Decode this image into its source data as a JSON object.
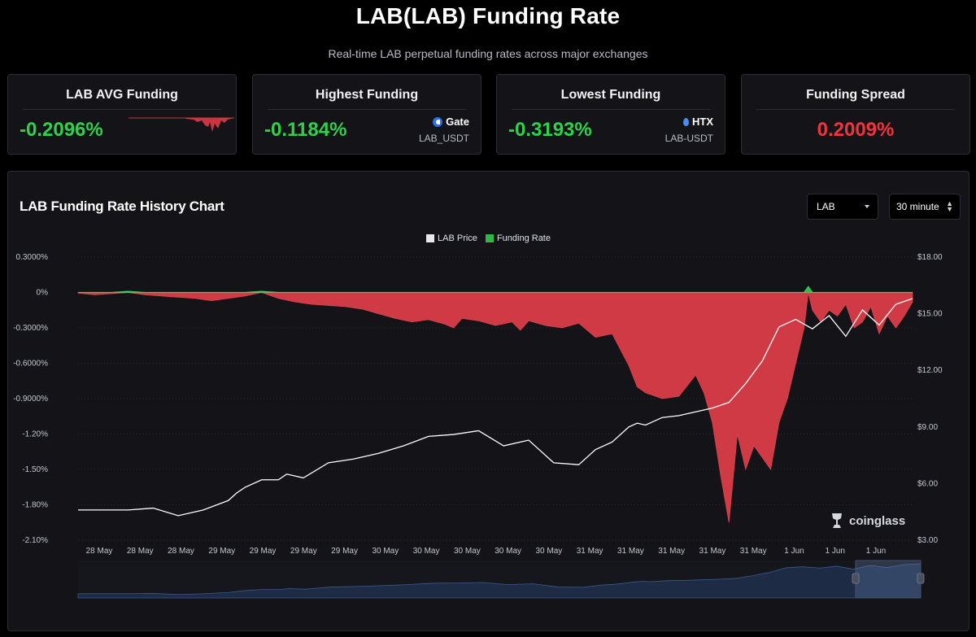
{
  "header": {
    "title": "LAB(LAB) Funding Rate",
    "subtitle": "Real-time LAB perpetual funding rates across major exchanges"
  },
  "cards": {
    "avg": {
      "title": "LAB AVG Funding",
      "value": "-0.2096%"
    },
    "highest": {
      "title": "Highest Funding",
      "value": "-0.1184%",
      "exchange": "Gate",
      "pair": "LAB_USDT"
    },
    "lowest": {
      "title": "Lowest Funding",
      "value": "-0.3193%",
      "exchange": "HTX",
      "pair": "LAB-USDT"
    },
    "spread": {
      "title": "Funding Spread",
      "value": "0.2009%"
    }
  },
  "colors": {
    "positive": "#2fd14a",
    "negative": "#f0333d",
    "funding_area": "#d03a45",
    "price_line": "#ffffff",
    "panel_bg": "#131318"
  },
  "chart_panel": {
    "title": "LAB Funding Rate History Chart",
    "coin_select": "LAB",
    "interval_select": "30 minute",
    "watermark": "coinglass"
  },
  "chart_data": {
    "type": "area",
    "title": "LAB Funding Rate History Chart",
    "legend": [
      "LAB Price",
      "Funding Rate"
    ],
    "legend_placement": "top-center",
    "x_tick_labels": [
      "28 May",
      "28 May",
      "28 May",
      "29 May",
      "29 May",
      "29 May",
      "29 May",
      "30 May",
      "30 May",
      "30 May",
      "30 May",
      "30 May",
      "31 May",
      "31 May",
      "31 May",
      "31 May",
      "31 May",
      "1 Jun",
      "1 Jun",
      "1 Jun"
    ],
    "y_left": {
      "label": "",
      "ticks": [
        "0.3000%",
        "0%",
        "-0.3000%",
        "-0.6000%",
        "-0.9000%",
        "-1.20%",
        "-1.50%",
        "-1.80%",
        "-2.10%"
      ],
      "range": [
        -2.1,
        0.3
      ]
    },
    "y_right": {
      "label": "",
      "ticks": [
        "$18.00",
        "$15.00",
        "$12.00",
        "$9.00",
        "$6.00",
        "$3.00"
      ],
      "range": [
        3,
        18
      ]
    },
    "grid": true,
    "series": [
      {
        "name": "Funding Rate",
        "axis": "left",
        "x": [
          0,
          2,
          4,
          6,
          8,
          10,
          12,
          14,
          16,
          18,
          20,
          22,
          24,
          26,
          28,
          30,
          32,
          34,
          36,
          38,
          40,
          42,
          44,
          45,
          46,
          48,
          50,
          52,
          53,
          54,
          56,
          58,
          60,
          62,
          64,
          66,
          67,
          68,
          70,
          72,
          74,
          75,
          76,
          77,
          78,
          79,
          80,
          81,
          82,
          83,
          84,
          85,
          86,
          87,
          87.5,
          88,
          89,
          90,
          91,
          92,
          93,
          94,
          95,
          96,
          97,
          98,
          99,
          100
        ],
        "values": [
          -0.005,
          -0.02,
          -0.01,
          0.01,
          -0.02,
          -0.03,
          -0.04,
          -0.05,
          -0.07,
          -0.05,
          -0.03,
          0.01,
          -0.05,
          -0.08,
          -0.1,
          -0.11,
          -0.12,
          -0.14,
          -0.18,
          -0.22,
          -0.25,
          -0.23,
          -0.27,
          -0.3,
          -0.22,
          -0.24,
          -0.28,
          -0.25,
          -0.32,
          -0.24,
          -0.28,
          -0.3,
          -0.26,
          -0.38,
          -0.35,
          -0.62,
          -0.8,
          -0.85,
          -0.9,
          -0.88,
          -0.7,
          -0.85,
          -1.1,
          -1.55,
          -1.95,
          -1.2,
          -1.5,
          -1.3,
          -1.4,
          -1.5,
          -1.1,
          -0.9,
          -0.6,
          -0.3,
          0.05,
          -0.15,
          -0.25,
          -0.15,
          -0.2,
          -0.1,
          -0.3,
          -0.25,
          -0.12,
          -0.35,
          -0.2,
          -0.3,
          -0.2,
          -0.08
        ]
      },
      {
        "name": "LAB Price",
        "axis": "right",
        "x": [
          0,
          3,
          6,
          9,
          12,
          15,
          18,
          19,
          20,
          22,
          24,
          25,
          27,
          30,
          33,
          36,
          39,
          42,
          45,
          48,
          51,
          54,
          57,
          60,
          62,
          64,
          66,
          67,
          68,
          70,
          72,
          74,
          76,
          78,
          80,
          82,
          84,
          86,
          88,
          90,
          92,
          94,
          96,
          98,
          100
        ],
        "values": [
          4.6,
          4.6,
          4.6,
          4.7,
          4.3,
          4.6,
          5.1,
          5.5,
          5.8,
          6.2,
          6.2,
          6.5,
          6.3,
          7.1,
          7.3,
          7.6,
          8.0,
          8.5,
          8.6,
          8.8,
          8.0,
          8.3,
          7.1,
          7.0,
          7.8,
          8.2,
          9.0,
          9.2,
          9.1,
          9.5,
          9.6,
          9.8,
          10.0,
          10.3,
          11.3,
          12.5,
          14.3,
          14.7,
          14.2,
          14.9,
          13.8,
          15.2,
          14.4,
          15.5,
          15.8
        ]
      }
    ]
  }
}
